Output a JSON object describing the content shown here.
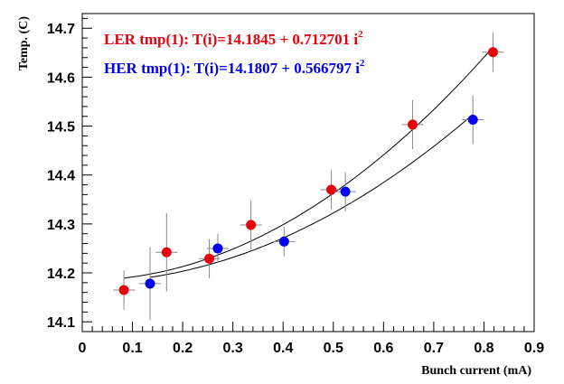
{
  "chart_data": {
    "type": "scatter",
    "xlabel": "Bunch current (mA)",
    "ylabel": "Temp. (C)",
    "xlim": [
      0,
      0.9
    ],
    "ylim": [
      14.08,
      14.73
    ],
    "x_ticks": [
      "0",
      "0.1",
      "0.2",
      "0.3",
      "0.4",
      "0.5",
      "0.6",
      "0.7",
      "0.8",
      "0.9"
    ],
    "y_ticks": [
      "14.1",
      "14.2",
      "14.3",
      "14.4",
      "14.5",
      "14.6",
      "14.7"
    ],
    "grid": false,
    "legend_position": "top-left",
    "series": [
      {
        "name": "LER tmp(1)",
        "legend_label": "LER tmp(1): T(i)=14.1845 + 0.712701 i",
        "legend_sup": "2",
        "color": "#e8000a",
        "fit": {
          "a": 14.1845,
          "b": 0.712701
        },
        "points": [
          {
            "x": 0.083,
            "y": 14.165,
            "yerr": 0.04
          },
          {
            "x": 0.168,
            "y": 14.242,
            "yerr": 0.08
          },
          {
            "x": 0.253,
            "y": 14.229,
            "yerr": 0.04
          },
          {
            "x": 0.336,
            "y": 14.298,
            "yerr": 0.05
          },
          {
            "x": 0.496,
            "y": 14.37,
            "yerr": 0.04
          },
          {
            "x": 0.658,
            "y": 14.503,
            "yerr": 0.05
          },
          {
            "x": 0.818,
            "y": 14.651,
            "yerr": 0.04
          }
        ]
      },
      {
        "name": "HER tmp(1)",
        "legend_label": "HER tmp(1): T(i)=14.1807 + 0.566797 i",
        "legend_sup": "2",
        "color": "#0000ee",
        "fit": {
          "a": 14.1807,
          "b": 0.566797
        },
        "points": [
          {
            "x": 0.135,
            "y": 14.178,
            "yerr": 0.075
          },
          {
            "x": 0.27,
            "y": 14.25,
            "yerr": 0.03
          },
          {
            "x": 0.402,
            "y": 14.264,
            "yerr": 0.03
          },
          {
            "x": 0.524,
            "y": 14.366,
            "yerr": 0.04
          },
          {
            "x": 0.778,
            "y": 14.513,
            "yerr": 0.05
          }
        ]
      }
    ]
  }
}
